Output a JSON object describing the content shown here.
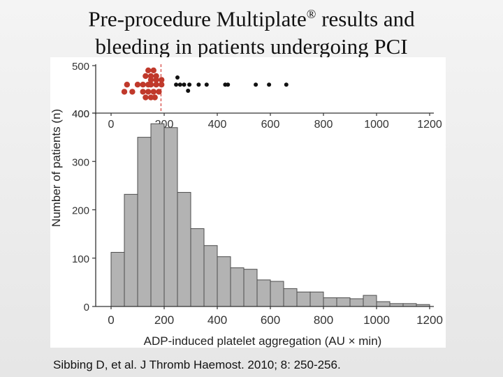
{
  "slide": {
    "title_line1": "Pre-procedure Multiplate",
    "title_sup": "®",
    "title_line1_tail": " results and",
    "title_line2": "bleeding in patients undergoing PCI",
    "citation": "Sibbing D, et al. J Thromb Haemost. 2010; 8: 250-256."
  },
  "colors": {
    "bar_fill": "#b3b3b3",
    "bar_stroke": "#4d4d4d",
    "bleed_red": "#c0392b",
    "bleed_black": "#111111",
    "cutoff_line": "#d9534f"
  },
  "chart_data": [
    {
      "type": "scatter",
      "x_ticks": [
        "0",
        "200",
        "400",
        "600",
        "800",
        "1000",
        "1200"
      ],
      "y_ticks": [
        "400",
        "500"
      ],
      "xlim": [
        0,
        1200
      ],
      "cutoff_x": 188,
      "series": [
        {
          "color": "red",
          "points": [
            [
              60,
              460
            ],
            [
              100,
              460
            ],
            [
              120,
              460
            ],
            [
              140,
              460
            ],
            [
              150,
              460
            ],
            [
              170,
              460
            ],
            [
              190,
              460
            ],
            [
              130,
              478
            ],
            [
              150,
              478
            ],
            [
              170,
              478
            ],
            [
              50,
              445
            ],
            [
              80,
              445
            ],
            [
              120,
              445
            ],
            [
              140,
              445
            ],
            [
              160,
              445
            ],
            [
              180,
              445
            ],
            [
              130,
              433
            ],
            [
              150,
              433
            ],
            [
              165,
              433
            ],
            [
              140,
              490
            ],
            [
              160,
              490
            ],
            [
              150,
              470
            ],
            [
              170,
              470
            ],
            [
              190,
              470
            ]
          ]
        },
        {
          "color": "black",
          "points": [
            [
              245,
              460
            ],
            [
              260,
              460
            ],
            [
              275,
              460
            ],
            [
              295,
              460
            ],
            [
              330,
              460
            ],
            [
              360,
              460
            ],
            [
              430,
              460
            ],
            [
              440,
              460
            ],
            [
              545,
              460
            ],
            [
              595,
              460
            ],
            [
              660,
              460
            ],
            [
              250,
              475
            ],
            [
              290,
              447
            ]
          ]
        }
      ]
    },
    {
      "type": "bar",
      "xlabel": "ADP-induced platelet aggregation (AU × min)",
      "ylabel": "Number of patients (n)",
      "xlim": [
        0,
        1200
      ],
      "ylim": [
        0,
        400
      ],
      "x_ticks": [
        "0",
        "200",
        "400",
        "600",
        "800",
        "1000",
        "1200"
      ],
      "y_ticks": [
        "0",
        "100",
        "200",
        "300",
        "400"
      ],
      "bin_width": 50,
      "bin_starts": [
        0,
        50,
        100,
        150,
        200,
        250,
        300,
        350,
        400,
        450,
        500,
        550,
        600,
        650,
        700,
        750,
        800,
        850,
        900,
        950,
        1000,
        1050,
        1100,
        1150
      ],
      "values": [
        112,
        232,
        350,
        378,
        370,
        236,
        161,
        126,
        103,
        80,
        77,
        55,
        52,
        37,
        30,
        30,
        18,
        18,
        16,
        23,
        10,
        6,
        6,
        4
      ]
    }
  ]
}
